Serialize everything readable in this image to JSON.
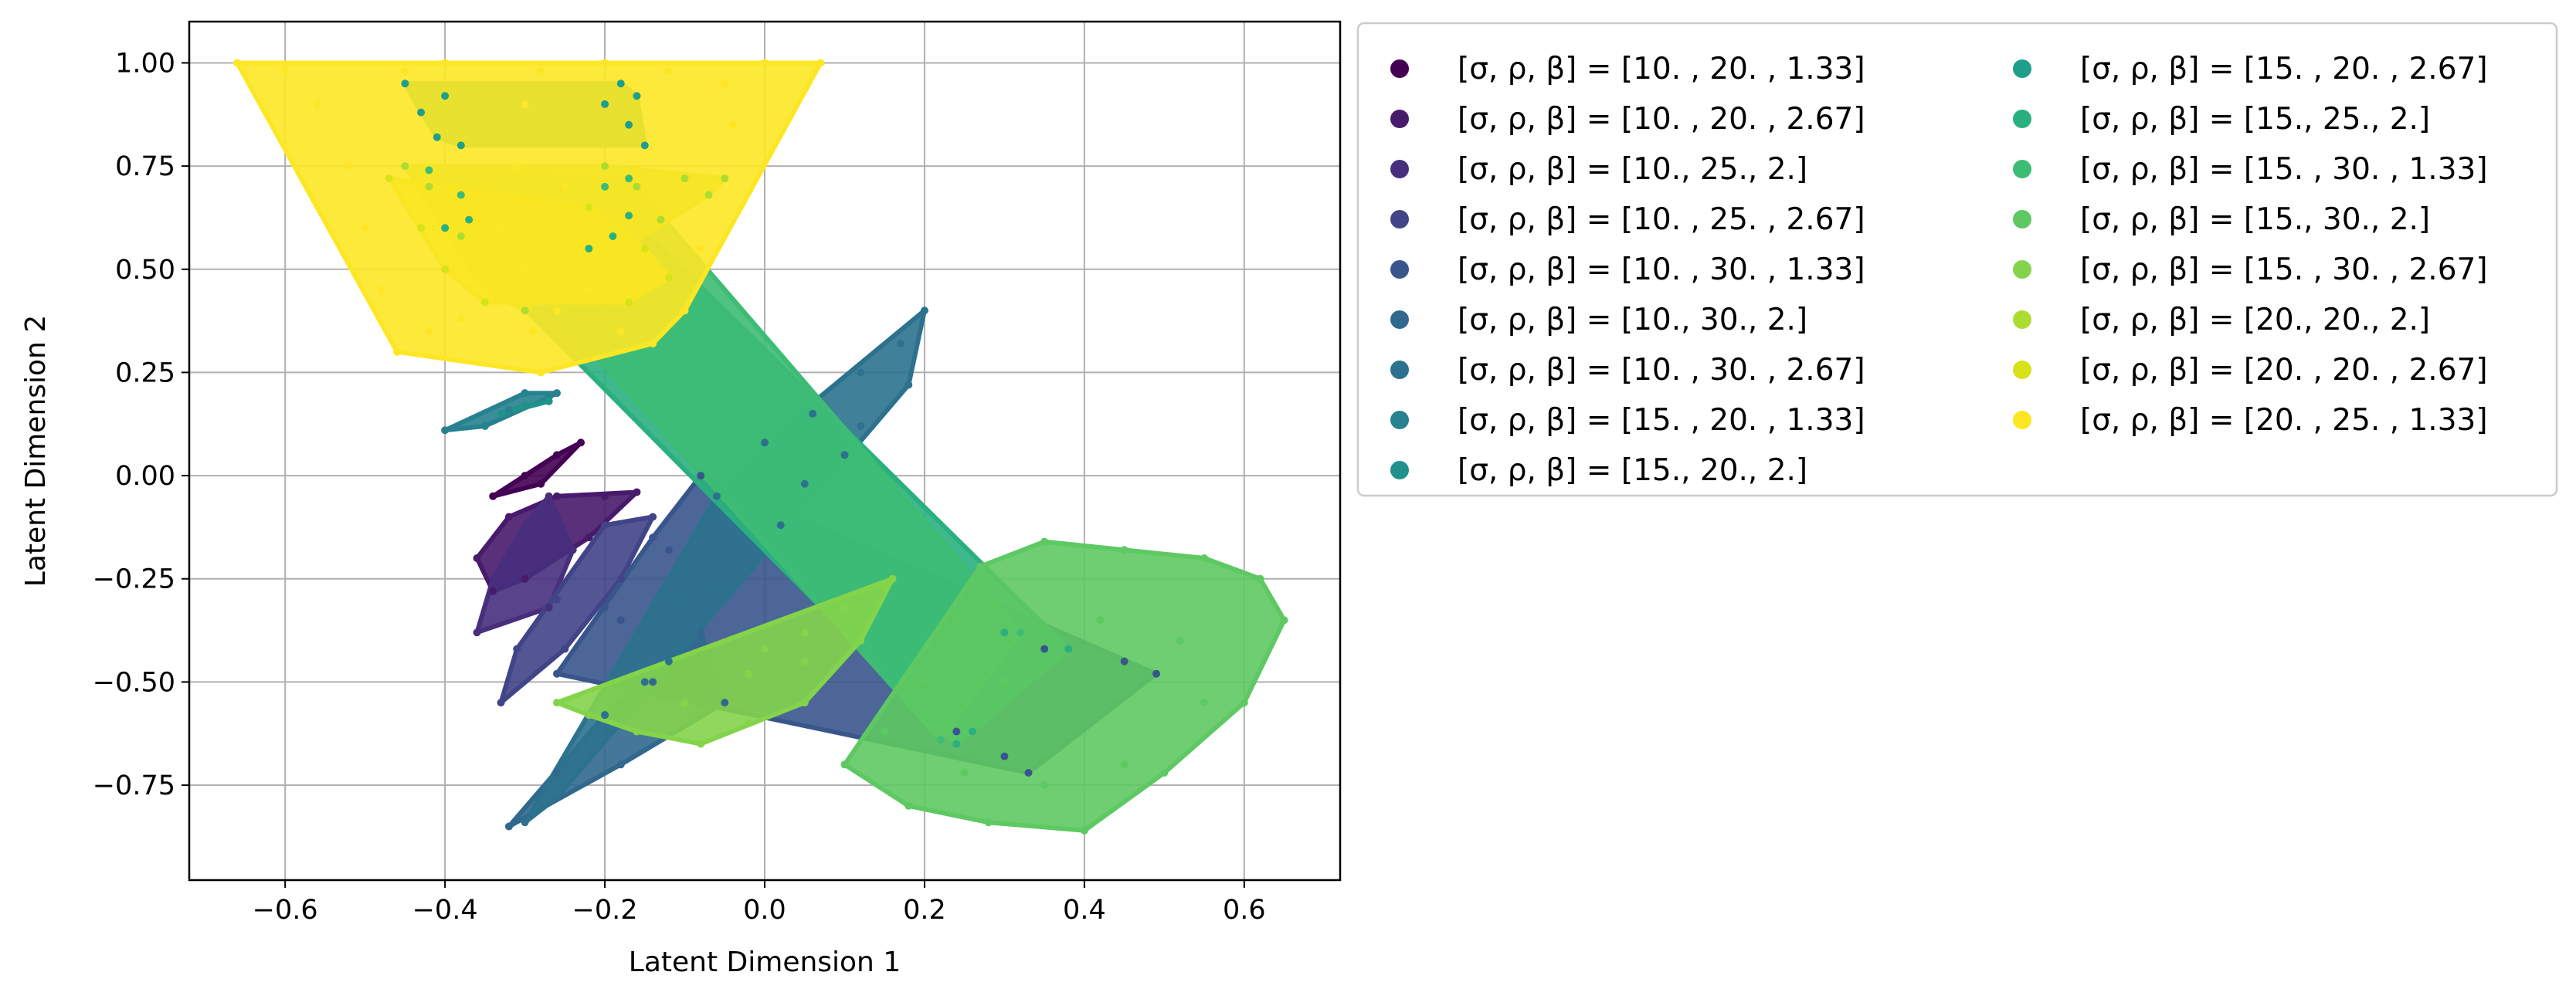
{
  "chart_data": {
    "type": "scatter",
    "title": "",
    "xlabel": "Latent Dimension 1",
    "ylabel": "Latent Dimension 2",
    "xlim": [
      -0.72,
      0.72
    ],
    "ylim": [
      -0.98,
      1.1
    ],
    "x_ticks": [
      "−0.6",
      "−0.4",
      "−0.2",
      "0.0",
      "0.2",
      "0.4",
      "0.6"
    ],
    "x_tick_values": [
      -0.6,
      -0.4,
      -0.2,
      0.0,
      0.2,
      0.4,
      0.6
    ],
    "y_ticks": [
      "−0.75",
      "−0.50",
      "−0.25",
      "0.00",
      "0.25",
      "0.50",
      "0.75",
      "1.00"
    ],
    "y_tick_values": [
      -0.75,
      -0.5,
      -0.25,
      0.0,
      0.25,
      0.5,
      0.75,
      1.0
    ],
    "grid": true,
    "legend_position": "outside-right",
    "series": [
      {
        "name": "[σ, ρ, β] = [10.  , 20.  ,  1.33]",
        "color": "#440154",
        "points": [
          [
            -0.34,
            -0.05
          ],
          [
            -0.3,
            0.0
          ],
          [
            -0.26,
            0.05
          ],
          [
            -0.23,
            0.08
          ],
          [
            -0.28,
            -0.02
          ]
        ]
      },
      {
        "name": "[σ, ρ, β] = [10.  , 20.  ,  2.67]",
        "color": "#481a6c",
        "points": [
          [
            -0.36,
            -0.2
          ],
          [
            -0.32,
            -0.1
          ],
          [
            -0.26,
            -0.05
          ],
          [
            -0.2,
            -0.05
          ],
          [
            -0.16,
            -0.04
          ],
          [
            -0.22,
            -0.15
          ],
          [
            -0.3,
            -0.25
          ],
          [
            -0.34,
            -0.28
          ]
        ]
      },
      {
        "name": "[σ, ρ, β] = [10., 25.,  2.]",
        "color": "#472f7d",
        "points": [
          [
            -0.36,
            -0.38
          ],
          [
            -0.34,
            -0.25
          ],
          [
            -0.3,
            -0.12
          ],
          [
            -0.27,
            -0.05
          ],
          [
            -0.24,
            -0.18
          ],
          [
            -0.27,
            -0.32
          ]
        ]
      },
      {
        "name": "[σ, ρ, β] = [10.  , 25.  ,  2.67]",
        "color": "#414487",
        "points": [
          [
            -0.33,
            -0.55
          ],
          [
            -0.31,
            -0.42
          ],
          [
            -0.26,
            -0.3
          ],
          [
            -0.2,
            -0.12
          ],
          [
            -0.14,
            -0.1
          ],
          [
            -0.18,
            -0.25
          ],
          [
            -0.25,
            -0.42
          ]
        ]
      },
      {
        "name": "[σ, ρ, β] = [10.  , 30.  ,  1.33]",
        "color": "#39568c",
        "points": [
          [
            -0.26,
            -0.48
          ],
          [
            -0.2,
            -0.32
          ],
          [
            -0.14,
            -0.15
          ],
          [
            -0.08,
            0.0
          ],
          [
            -0.12,
            -0.18
          ],
          [
            -0.18,
            -0.35
          ],
          [
            0.35,
            -0.42
          ],
          [
            0.45,
            -0.45
          ],
          [
            0.49,
            -0.48
          ],
          [
            0.24,
            -0.62
          ],
          [
            0.3,
            -0.68
          ],
          [
            0.33,
            -0.72
          ]
        ]
      },
      {
        "name": "[σ, ρ, β] = [10., 30.,  2.]",
        "color": "#31688e",
        "points": [
          [
            -0.32,
            -0.85
          ],
          [
            -0.26,
            -0.72
          ],
          [
            -0.2,
            -0.58
          ],
          [
            -0.14,
            -0.5
          ],
          [
            -0.08,
            -0.38
          ],
          [
            -0.05,
            -0.55
          ],
          [
            -0.18,
            -0.7
          ]
        ]
      },
      {
        "name": "[σ, ρ, β] = [10.  , 30.  ,  2.67]",
        "color": "#2c728e",
        "points": [
          [
            -0.3,
            -0.84
          ],
          [
            -0.25,
            -0.7
          ],
          [
            -0.2,
            -0.58
          ],
          [
            -0.15,
            -0.5
          ],
          [
            -0.1,
            -0.3
          ],
          [
            -0.06,
            -0.05
          ],
          [
            0.0,
            0.08
          ],
          [
            0.06,
            0.15
          ],
          [
            0.12,
            0.25
          ],
          [
            0.17,
            0.32
          ],
          [
            0.2,
            0.4
          ],
          [
            0.18,
            0.22
          ],
          [
            0.1,
            0.05
          ],
          [
            0.02,
            -0.12
          ],
          [
            -0.06,
            -0.28
          ],
          [
            -0.12,
            -0.45
          ],
          [
            -0.2,
            -0.62
          ],
          [
            -0.26,
            -0.78
          ],
          [
            0.05,
            -0.02
          ],
          [
            0.12,
            0.12
          ]
        ]
      },
      {
        "name": "[σ, ρ, β] = [15.  , 20.  ,  1.33]",
        "color": "#26828e",
        "points": [
          [
            -0.4,
            0.11
          ],
          [
            -0.35,
            0.12
          ],
          [
            -0.32,
            0.16
          ],
          [
            -0.27,
            0.19
          ],
          [
            -0.26,
            0.2
          ],
          [
            -0.3,
            0.2
          ]
        ]
      },
      {
        "name": "[σ, ρ, β] = [15., 20.,  2.]",
        "color": "#21918c",
        "points": [
          [
            -0.33,
            0.15
          ],
          [
            -0.3,
            0.17
          ],
          [
            -0.27,
            0.18
          ]
        ]
      },
      {
        "name": "[σ, ρ, β] = [15.  , 20.  ,  2.67]",
        "color": "#1f9e89",
        "points": [
          [
            -0.45,
            0.95
          ],
          [
            -0.43,
            0.88
          ],
          [
            -0.41,
            0.82
          ],
          [
            -0.4,
            0.92
          ],
          [
            -0.38,
            0.8
          ],
          [
            -0.2,
            0.9
          ],
          [
            -0.17,
            0.85
          ],
          [
            -0.15,
            0.8
          ],
          [
            -0.18,
            0.95
          ],
          [
            -0.16,
            0.92
          ]
        ]
      },
      {
        "name": "[σ, ρ, β] = [15., 25.,  2.]",
        "color": "#2ab07f",
        "points": [
          [
            -0.4,
            0.6
          ],
          [
            -0.37,
            0.62
          ],
          [
            -0.19,
            0.58
          ],
          [
            -0.22,
            0.55
          ],
          [
            -0.17,
            0.63
          ],
          [
            0.3,
            -0.38
          ],
          [
            0.38,
            -0.42
          ],
          [
            0.26,
            -0.62
          ],
          [
            0.24,
            -0.65
          ]
        ]
      },
      {
        "name": "[σ, ρ, β] = [15.  , 30.  ,  1.33]",
        "color": "#3dbc74",
        "points": [
          [
            -0.42,
            0.74
          ],
          [
            -0.38,
            0.68
          ],
          [
            -0.2,
            0.7
          ],
          [
            -0.17,
            0.72
          ],
          [
            0.32,
            -0.38
          ],
          [
            0.22,
            -0.64
          ]
        ]
      },
      {
        "name": "[σ, ρ, β] = [15., 30.,  2.]",
        "color": "#5ec962",
        "points": [
          [
            0.1,
            -0.7
          ],
          [
            0.18,
            -0.8
          ],
          [
            0.28,
            -0.84
          ],
          [
            0.4,
            -0.86
          ],
          [
            0.5,
            -0.72
          ],
          [
            0.6,
            -0.55
          ],
          [
            0.65,
            -0.35
          ],
          [
            0.62,
            -0.25
          ],
          [
            0.55,
            -0.2
          ],
          [
            0.45,
            -0.18
          ],
          [
            0.35,
            -0.16
          ],
          [
            0.27,
            -0.22
          ],
          [
            0.24,
            -0.35
          ],
          [
            0.2,
            -0.5
          ],
          [
            0.15,
            -0.62
          ],
          [
            0.3,
            -0.5
          ],
          [
            0.42,
            -0.35
          ],
          [
            0.52,
            -0.4
          ],
          [
            0.55,
            -0.55
          ],
          [
            0.45,
            -0.7
          ],
          [
            0.35,
            -0.75
          ],
          [
            0.25,
            -0.72
          ]
        ]
      },
      {
        "name": "[σ, ρ, β] = [15.  , 30.  ,  2.67]",
        "color": "#84d44b",
        "points": [
          [
            -0.26,
            -0.55
          ],
          [
            -0.22,
            -0.58
          ],
          [
            -0.16,
            -0.62
          ],
          [
            -0.08,
            -0.65
          ],
          [
            -0.02,
            -0.6
          ],
          [
            0.05,
            -0.55
          ],
          [
            -0.02,
            -0.48
          ],
          [
            0.0,
            -0.42
          ],
          [
            0.05,
            -0.38
          ],
          [
            0.1,
            -0.32
          ],
          [
            0.15,
            -0.27
          ],
          [
            0.16,
            -0.25
          ],
          [
            0.12,
            -0.4
          ],
          [
            0.05,
            -0.45
          ],
          [
            -0.1,
            -0.55
          ]
        ]
      },
      {
        "name": "[σ, ρ, β] = [20., 20.,  2.]",
        "color": "#addc30",
        "points": [
          [
            -0.45,
            0.75
          ],
          [
            -0.42,
            0.7
          ],
          [
            -0.38,
            0.58
          ],
          [
            -0.35,
            0.45
          ],
          [
            -0.3,
            0.4
          ],
          [
            -0.2,
            0.75
          ],
          [
            -0.16,
            0.7
          ],
          [
            -0.13,
            0.62
          ],
          [
            -0.1,
            0.72
          ],
          [
            -0.07,
            0.68
          ],
          [
            -0.05,
            0.72
          ]
        ]
      },
      {
        "name": "[σ, ρ, β] = [20.  , 20.  ,  2.67]",
        "color": "#d8e219",
        "points": [
          [
            -0.47,
            0.72
          ],
          [
            -0.43,
            0.6
          ],
          [
            -0.4,
            0.5
          ],
          [
            -0.35,
            0.42
          ],
          [
            -0.22,
            0.65
          ],
          [
            -0.15,
            0.55
          ],
          [
            -0.12,
            0.48
          ],
          [
            -0.17,
            0.42
          ]
        ]
      },
      {
        "name": "[σ, ρ, β] = [20.  , 25.  ,  1.33]",
        "color": "#fde725",
        "points": [
          [
            -0.66,
            1.0
          ],
          [
            -0.6,
            0.98
          ],
          [
            -0.56,
            0.9
          ],
          [
            -0.52,
            0.75
          ],
          [
            -0.5,
            0.6
          ],
          [
            -0.48,
            0.45
          ],
          [
            -0.46,
            0.3
          ],
          [
            -0.42,
            0.35
          ],
          [
            -0.38,
            0.38
          ],
          [
            -0.35,
            0.45
          ],
          [
            -0.33,
            0.6
          ],
          [
            -0.31,
            0.75
          ],
          [
            -0.3,
            0.9
          ],
          [
            -0.28,
            0.98
          ],
          [
            -0.3,
            0.5
          ],
          [
            -0.29,
            0.35
          ],
          [
            -0.28,
            0.25
          ],
          [
            -0.26,
            0.4
          ],
          [
            -0.25,
            0.7
          ],
          [
            -0.22,
            0.45
          ],
          [
            -0.18,
            0.35
          ],
          [
            -0.14,
            0.32
          ],
          [
            -0.1,
            0.4
          ],
          [
            -0.08,
            0.55
          ],
          [
            -0.06,
            0.7
          ],
          [
            -0.04,
            0.85
          ],
          [
            -0.05,
            0.95
          ],
          [
            0.0,
            1.0
          ],
          [
            0.07,
            1.0
          ],
          [
            -0.45,
            0.98
          ],
          [
            -0.4,
            1.0
          ],
          [
            -0.2,
            1.0
          ],
          [
            -0.12,
            0.98
          ]
        ]
      }
    ]
  }
}
